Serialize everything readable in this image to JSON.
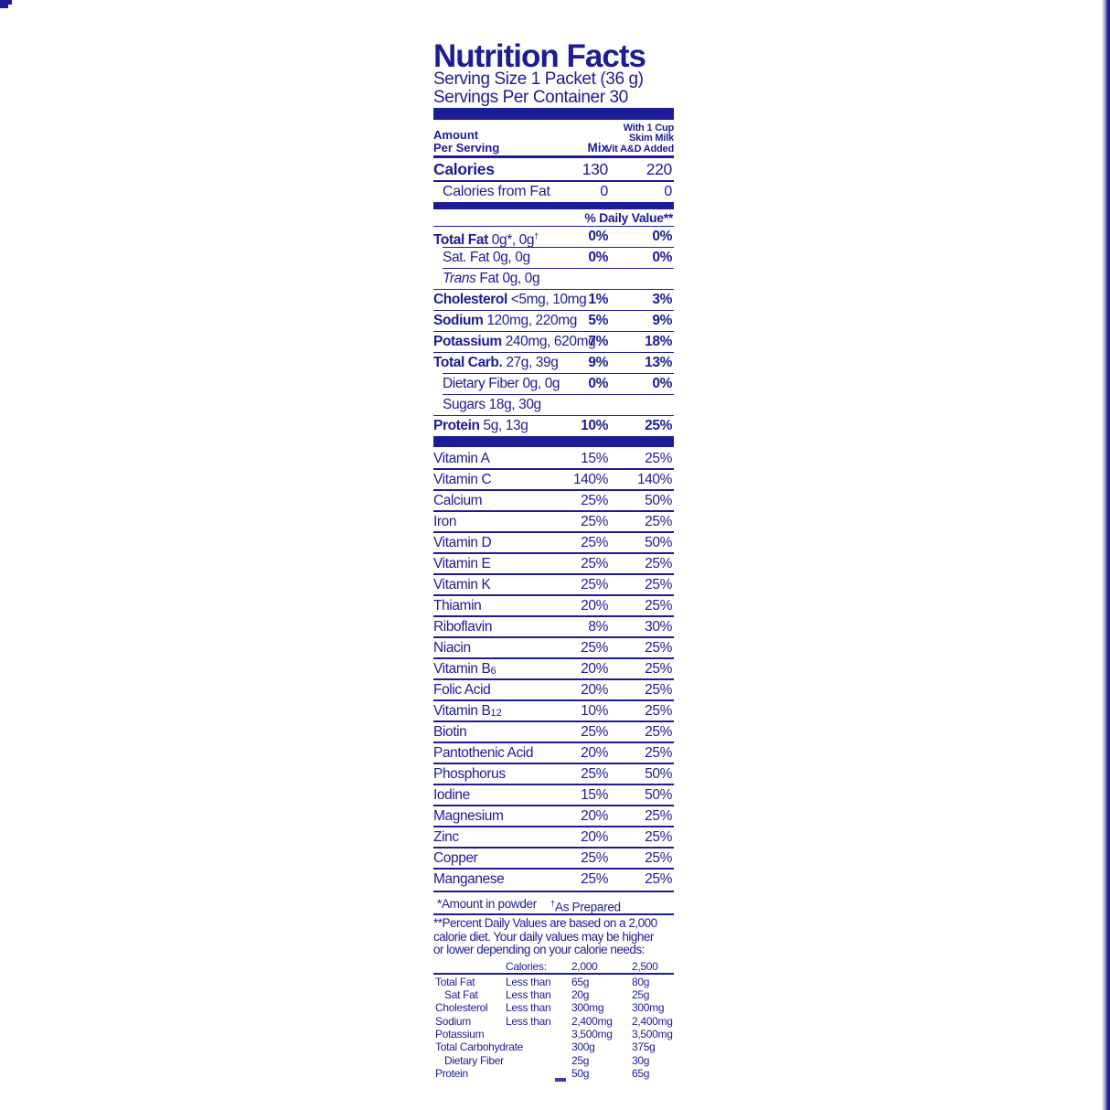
{
  "colors": {
    "blue": "#1c1c96",
    "stripe_light": "#9a9ad0"
  },
  "label": {
    "title": "Nutrition Facts",
    "serving_size": "Serving Size 1 Packet (36 g)",
    "servings_per_container": "Servings Per Container 30",
    "col_amount_1": "Amount",
    "col_amount_2": "Per Serving",
    "col_mix": "Mix",
    "col_prepared": [
      "With 1 Cup",
      "Skim Milk",
      "Vit A&D Added"
    ],
    "calories_label": "Calories",
    "calories_mix": "130",
    "calories_prepared": "220",
    "calories_fat_label": "Calories from Fat",
    "calories_fat_mix": "0",
    "calories_fat_prepared": "0",
    "daily_value_header": "% Daily Value**"
  },
  "nutrients": [
    {
      "lead": "Total Fat",
      "style": "bold",
      "rest": " 0g*, 0g",
      "sup": "†",
      "mix": "0%",
      "prep": "0%",
      "indent": false
    },
    {
      "lead": "Sat. Fat",
      "style": "normal",
      "rest": " 0g, 0g",
      "sup": "",
      "mix": "0%",
      "prep": "0%",
      "indent": true
    },
    {
      "lead": "Trans",
      "style": "italic",
      "rest": " Fat 0g, 0g",
      "sup": "",
      "mix": "",
      "prep": "",
      "indent": true
    },
    {
      "lead": "Cholesterol",
      "style": "bold",
      "rest": " <5mg, 10mg",
      "sup": "",
      "mix": "1%",
      "prep": "3%",
      "indent": false
    },
    {
      "lead": "Sodium",
      "style": "bold",
      "rest": " 120mg, 220mg",
      "sup": "",
      "mix": "5%",
      "prep": "9%",
      "indent": false
    },
    {
      "lead": "Potassium",
      "style": "bold",
      "rest": " 240mg, 620mg",
      "sup": "",
      "mix": "7%",
      "prep": "18%",
      "indent": false
    },
    {
      "lead": "Total Carb.",
      "style": "bold",
      "rest": " 27g, 39g",
      "sup": "",
      "mix": "9%",
      "prep": "13%",
      "indent": false
    },
    {
      "lead": "Dietary Fiber",
      "style": "normal",
      "rest": " 0g, 0g",
      "sup": "",
      "mix": "0%",
      "prep": "0%",
      "indent": true
    },
    {
      "lead": "Sugars",
      "style": "normal",
      "rest": " 18g, 30g",
      "sup": "",
      "mix": "",
      "prep": "",
      "indent": true
    },
    {
      "lead": "Protein",
      "style": "bold",
      "rest": " 5g, 13g",
      "sup": "",
      "mix": "10%",
      "prep": "25%",
      "indent": false
    }
  ],
  "vitamins": [
    {
      "label": "Vitamin A",
      "sub": "",
      "mix": "15%",
      "prep": "25%"
    },
    {
      "label": "Vitamin C",
      "sub": "",
      "mix": "140%",
      "prep": "140%"
    },
    {
      "label": "Calcium",
      "sub": "",
      "mix": "25%",
      "prep": "50%"
    },
    {
      "label": "Iron",
      "sub": "",
      "mix": "25%",
      "prep": "25%"
    },
    {
      "label": "Vitamin D",
      "sub": "",
      "mix": "25%",
      "prep": "50%"
    },
    {
      "label": "Vitamin E",
      "sub": "",
      "mix": "25%",
      "prep": "25%"
    },
    {
      "label": "Vitamin K",
      "sub": "",
      "mix": "25%",
      "prep": "25%"
    },
    {
      "label": "Thiamin",
      "sub": "",
      "mix": "20%",
      "prep": "25%"
    },
    {
      "label": "Riboflavin",
      "sub": "",
      "mix": "8%",
      "prep": "30%"
    },
    {
      "label": "Niacin",
      "sub": "",
      "mix": "25%",
      "prep": "25%"
    },
    {
      "label": "Vitamin B",
      "sub": "6",
      "mix": "20%",
      "prep": "25%"
    },
    {
      "label": "Folic Acid",
      "sub": "",
      "mix": "20%",
      "prep": "25%"
    },
    {
      "label": "Vitamin B",
      "sub": "12",
      "mix": "10%",
      "prep": "25%"
    },
    {
      "label": "Biotin",
      "sub": "",
      "mix": "25%",
      "prep": "25%"
    },
    {
      "label": "Pantothenic Acid",
      "sub": "",
      "mix": "20%",
      "prep": "25%"
    },
    {
      "label": "Phosphorus",
      "sub": "",
      "mix": "25%",
      "prep": "50%"
    },
    {
      "label": "Iodine",
      "sub": "",
      "mix": "15%",
      "prep": "50%"
    },
    {
      "label": "Magnesium",
      "sub": "",
      "mix": "20%",
      "prep": "25%"
    },
    {
      "label": "Zinc",
      "sub": "",
      "mix": "20%",
      "prep": "25%"
    },
    {
      "label": "Copper",
      "sub": "",
      "mix": "25%",
      "prep": "25%"
    },
    {
      "label": "Manganese",
      "sub": "",
      "mix": "25%",
      "prep": "25%"
    }
  ],
  "footnotes": {
    "amount_note": "*Amount in powder",
    "prepared_sup": "†",
    "prepared_note": "As Prepared",
    "percent_note_lines": [
      "**Percent Daily Values are based on a 2,000",
      "calorie diet. Your daily values may be higher",
      "or lower depending on your calorie needs:"
    ]
  },
  "reference_table": {
    "header_label": "Calories:",
    "header_v1": "2,000",
    "header_v2": "2,500",
    "rows": [
      {
        "name": "Total Fat",
        "qual": "Less than",
        "v1": "65g",
        "v2": "80g",
        "indent": false
      },
      {
        "name": "Sat Fat",
        "qual": "Less than",
        "v1": "20g",
        "v2": "25g",
        "indent": true
      },
      {
        "name": "Cholesterol",
        "qual": "Less than",
        "v1": "300mg",
        "v2": "300mg",
        "indent": false
      },
      {
        "name": "Sodium",
        "qual": "Less than",
        "v1": "2,400mg",
        "v2": "2,400mg",
        "indent": false
      },
      {
        "name": "Potassium",
        "qual": "",
        "v1": "3,500mg",
        "v2": "3,500mg",
        "indent": false
      },
      {
        "name": "Total Carbohydrate",
        "qual": "",
        "v1": "300g",
        "v2": "375g",
        "indent": false
      },
      {
        "name": "Dietary Fiber",
        "qual": "",
        "v1": "25g",
        "v2": "30g",
        "indent": true
      },
      {
        "name": "Protein",
        "qual": "",
        "v1": "50g",
        "v2": "65g",
        "indent": false
      }
    ]
  }
}
